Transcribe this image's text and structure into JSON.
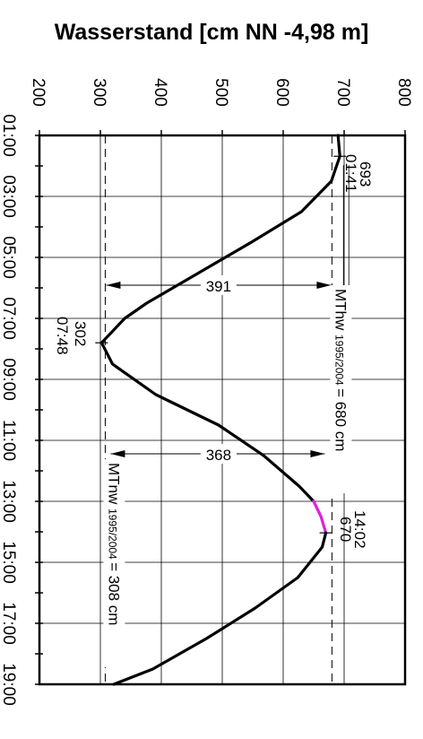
{
  "chart_data": {
    "type": "line",
    "title": "Wasserstand [cm NN -4,98 m]",
    "orientation": "rotated-90",
    "y_axis": {
      "ylim": [
        200,
        800
      ],
      "ticks": [
        200,
        300,
        400,
        500,
        600,
        700,
        800
      ],
      "tick_labels": [
        "200",
        "300",
        "400",
        "500",
        "600",
        "700",
        "800"
      ]
    },
    "x_axis": {
      "xlim": [
        "01:00",
        "19:00"
      ],
      "tick_labels": [
        "01:00",
        "03:00",
        "05:00",
        "07:00",
        "09:00",
        "11:00",
        "13:00",
        "15:00",
        "17:00",
        "19:00"
      ]
    },
    "grid": true,
    "series": [
      {
        "color": "#000000",
        "points": [
          [
            "01:00",
            690
          ],
          [
            "01:41",
            693
          ],
          [
            "02:30",
            679
          ],
          [
            "03:30",
            630
          ],
          [
            "04:30",
            548
          ],
          [
            "05:30",
            462
          ],
          [
            "06:30",
            376
          ],
          [
            "07:00",
            340
          ],
          [
            "07:48",
            302
          ],
          [
            "08:30",
            320
          ],
          [
            "09:30",
            391
          ],
          [
            "10:30",
            494
          ],
          [
            "11:30",
            568
          ],
          [
            "12:30",
            626
          ],
          [
            "13:00",
            650
          ]
        ]
      },
      {
        "color": "#e020e0",
        "points": [
          [
            "13:00",
            650
          ],
          [
            "13:30",
            662
          ],
          [
            "14:02",
            670
          ]
        ]
      },
      {
        "color": "#000000",
        "points": [
          [
            "14:02",
            670
          ],
          [
            "14:30",
            664
          ],
          [
            "15:30",
            624
          ],
          [
            "16:30",
            554
          ],
          [
            "17:30",
            474
          ],
          [
            "18:30",
            386
          ],
          [
            "19:00",
            322
          ]
        ]
      }
    ],
    "reference_lines": [
      {
        "value": 680,
        "label": "MThw",
        "sub": "1995/2004",
        "suffix": "= 680 cm"
      },
      {
        "value": 308,
        "label": "MTnw",
        "sub": "1995/2004",
        "suffix": "= 308 cm"
      }
    ],
    "annotations": {
      "high1": {
        "time": "01:41",
        "value": "693"
      },
      "low": {
        "value": "302",
        "time": "07:48"
      },
      "high2": {
        "time": "14:02",
        "value": "670"
      },
      "fall_range": "391",
      "rise_range": "368"
    }
  }
}
